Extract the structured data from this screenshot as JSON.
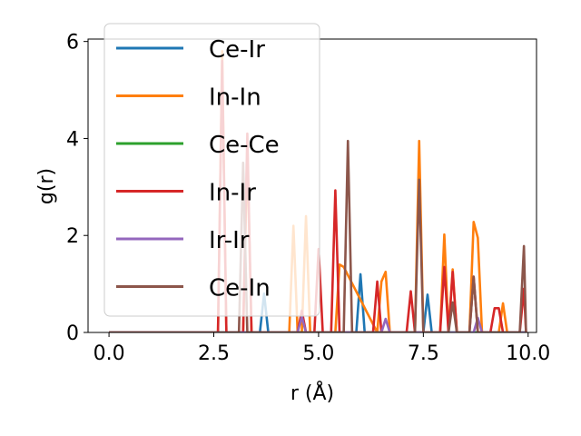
{
  "chart_data": {
    "type": "line",
    "xlabel": "r (Å)",
    "ylabel": "g(r)",
    "xlim": [
      -0.5,
      10.2
    ],
    "ylim": [
      0,
      6.05
    ],
    "xticks": [
      0.0,
      2.5,
      5.0,
      7.5,
      10.0
    ],
    "xtick_labels": [
      "0.0",
      "2.5",
      "5.0",
      "7.5",
      "10.0"
    ],
    "yticks": [
      0,
      2,
      4,
      6
    ],
    "ytick_labels": [
      "0",
      "2",
      "4",
      "6"
    ],
    "grid": false,
    "legend_position": "top-left",
    "series": [
      {
        "name": "Ce-Ir",
        "color": "#1f77b4",
        "x": [
          0,
          3.6,
          3.7,
          3.8,
          5.9,
          6.0,
          6.1,
          7.5,
          7.6,
          7.7,
          9.95
        ],
        "y": [
          0,
          0,
          0.8,
          0,
          0,
          1.2,
          0,
          0,
          0.78,
          0,
          0
        ]
      },
      {
        "name": "In-In",
        "color": "#ff7f0e",
        "x": [
          0,
          2.6,
          2.7,
          2.8,
          3.2,
          3.3,
          3.4,
          4.3,
          4.4,
          4.5,
          4.6,
          4.7,
          4.8,
          5.4,
          5.5,
          5.6,
          6.4,
          6.5,
          6.6,
          6.7,
          7.3,
          7.4,
          7.5,
          7.9,
          8.0,
          8.1,
          8.2,
          8.3,
          8.6,
          8.7,
          8.8,
          8.9,
          9.3,
          9.4,
          9.5,
          9.95
        ],
        "y": [
          0,
          0,
          5.8,
          0,
          0,
          3.7,
          0,
          0,
          2.2,
          0,
          0,
          2.4,
          0,
          0,
          1.4,
          1.35,
          0,
          1.05,
          1.25,
          0,
          0,
          3.95,
          0,
          0,
          2.02,
          0,
          1.3,
          0,
          0,
          2.28,
          1.95,
          0,
          0,
          0.6,
          0,
          0
        ]
      },
      {
        "name": "Ce-Ce",
        "color": "#2ca02c",
        "x": [
          0,
          9.95
        ],
        "y": [
          0,
          0
        ]
      },
      {
        "name": "In-Ir",
        "color": "#d62728",
        "x": [
          0,
          2.6,
          2.7,
          2.8,
          3.2,
          3.3,
          3.4,
          4.5,
          4.6,
          4.7,
          4.9,
          5.0,
          5.1,
          5.3,
          5.4,
          5.5,
          6.3,
          6.4,
          6.5,
          7.1,
          7.2,
          7.3,
          7.9,
          8.0,
          8.1,
          8.2,
          8.3,
          8.4,
          8.6,
          8.7,
          8.8,
          9.1,
          9.2,
          9.3,
          9.4,
          9.8,
          9.9,
          9.95
        ],
        "y": [
          0,
          0,
          5.6,
          0,
          0,
          4.1,
          0,
          0,
          0.45,
          0,
          0,
          1.72,
          0,
          0,
          2.93,
          0,
          0,
          1.05,
          0,
          0,
          0.85,
          0,
          0,
          1.35,
          0,
          1.25,
          0,
          0,
          0,
          1.15,
          0,
          0,
          0.5,
          0.5,
          0,
          0,
          0.9,
          0
        ]
      },
      {
        "name": "Ir-Ir",
        "color": "#9467bd",
        "x": [
          0,
          4.5,
          4.6,
          4.7,
          6.5,
          6.6,
          6.7,
          8.7,
          8.8,
          8.9,
          9.95
        ],
        "y": [
          0,
          0,
          0.32,
          0,
          0,
          0.28,
          0,
          0,
          0.3,
          0,
          0
        ]
      },
      {
        "name": "Ce-In",
        "color": "#8c564b",
        "x": [
          0,
          3.1,
          3.2,
          3.3,
          5.6,
          5.7,
          5.8,
          7.3,
          7.4,
          7.5,
          8.1,
          8.2,
          8.3,
          8.6,
          8.7,
          8.8,
          9.8,
          9.9,
          9.95
        ],
        "y": [
          0,
          0,
          3.5,
          0,
          0,
          3.95,
          0,
          0,
          3.15,
          0,
          0,
          0.62,
          0,
          0,
          1.15,
          0,
          0,
          1.78,
          0
        ]
      }
    ]
  }
}
